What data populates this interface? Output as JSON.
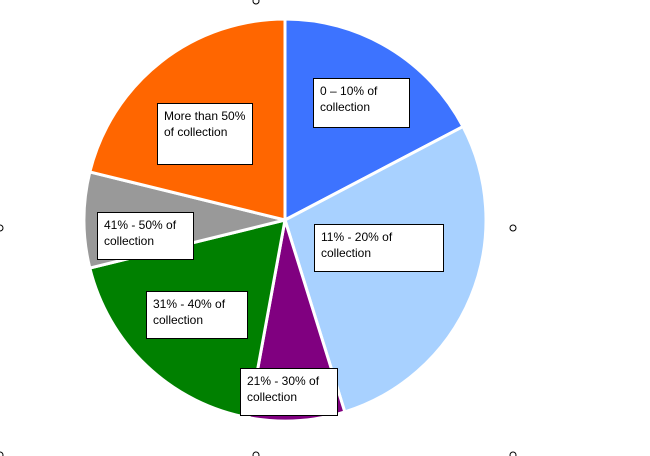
{
  "chart_data": {
    "type": "pie",
    "title": "",
    "start_angle_deg": 0,
    "direction": "clockwise",
    "slices": [
      {
        "label": "0 – 10% of collection",
        "value": 18,
        "color": "#3d73ff"
      },
      {
        "label": "11% - 20% of collection",
        "value": 29,
        "color": "#a8d1ff"
      },
      {
        "label": "21% - 30% of collection",
        "value": 8,
        "color": "#800080"
      },
      {
        "label": "31% - 40% of collection",
        "value": 19,
        "color": "#008000"
      },
      {
        "label": "41% - 50% of collection",
        "value": 8,
        "color": "#999999"
      },
      {
        "label": "More than 50% of collection",
        "value": 22,
        "color": "#ff6600"
      }
    ]
  }
}
